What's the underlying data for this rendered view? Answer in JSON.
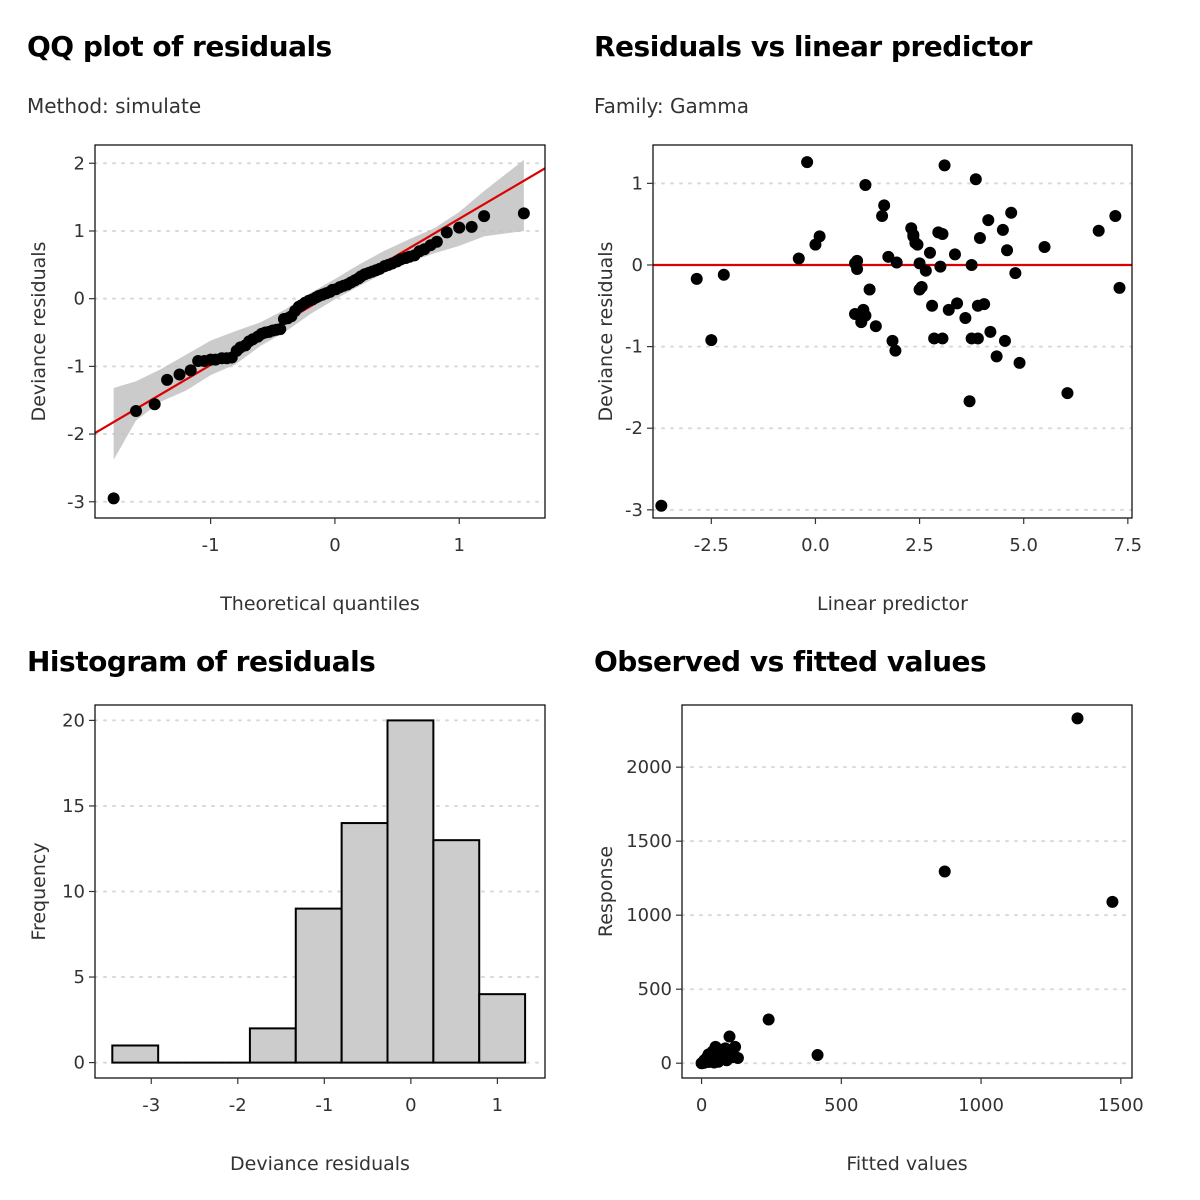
{
  "panels": {
    "qq": {
      "title": "QQ plot of residuals",
      "subtitle": "Method: simulate"
    },
    "rvl": {
      "title": "Residuals vs linear predictor",
      "subtitle": "Family: Gamma"
    },
    "hist": {
      "title": "Histogram of residuals"
    },
    "ovf": {
      "title": "Observed vs fitted values"
    }
  },
  "colors": {
    "reference_line": "#dd0000",
    "band": "#bebebe",
    "bar_fill": "#cccccc",
    "point": "#000000",
    "grid": "#d9d9d9"
  },
  "chart_data": [
    {
      "id": "qq",
      "type": "scatter",
      "title": "QQ plot of residuals",
      "subtitle": "Method: simulate",
      "xlabel": "Theoretical quantiles",
      "ylabel": "Deviance residuals",
      "xlim": [
        -1.93,
        1.69
      ],
      "ylim": [
        -3.24,
        2.27
      ],
      "xticks": [
        -1,
        0,
        1
      ],
      "xtick_labels": [
        "-1",
        "0",
        "1"
      ],
      "yticks": [
        -3,
        -2,
        -1,
        0,
        1,
        2
      ],
      "ytick_labels": [
        "-3",
        "-2",
        "-1",
        "0",
        "1",
        "2"
      ],
      "grid": "horizontal dotted",
      "reference_line": {
        "intercept": 0.1,
        "slope": 1.08
      },
      "band": {
        "x": [
          -1.78,
          -1.6,
          -1.4,
          -1.2,
          -1.0,
          -0.8,
          -0.6,
          -0.4,
          -0.2,
          0.0,
          0.2,
          0.4,
          0.6,
          0.8,
          1.0,
          1.2,
          1.52
        ],
        "lower": [
          -2.38,
          -1.8,
          -1.52,
          -1.36,
          -1.13,
          -0.97,
          -0.7,
          -0.49,
          -0.23,
          -0.01,
          0.19,
          0.38,
          0.54,
          0.67,
          0.78,
          0.92,
          1.0
        ],
        "upper": [
          -1.32,
          -1.22,
          -1.04,
          -0.83,
          -0.62,
          -0.48,
          -0.35,
          -0.16,
          0.08,
          0.29,
          0.51,
          0.71,
          0.88,
          1.04,
          1.28,
          1.59,
          2.05
        ]
      },
      "x": [
        -1.78,
        -1.6,
        -1.45,
        -1.35,
        -1.25,
        -1.16,
        -1.1,
        -1.05,
        -1.0,
        -0.96,
        -0.91,
        -0.87,
        -0.83,
        -0.79,
        -0.76,
        -0.72,
        -0.69,
        -0.66,
        -0.62,
        -0.59,
        -0.56,
        -0.53,
        -0.5,
        -0.47,
        -0.44,
        -0.41,
        -0.38,
        -0.35,
        -0.32,
        -0.29,
        -0.27,
        -0.24,
        -0.21,
        -0.18,
        -0.15,
        -0.13,
        -0.1,
        -0.07,
        -0.04,
        -0.02,
        0.01,
        0.04,
        0.07,
        0.1,
        0.13,
        0.16,
        0.19,
        0.21,
        0.24,
        0.27,
        0.3,
        0.33,
        0.36,
        0.4,
        0.43,
        0.46,
        0.5,
        0.53,
        0.57,
        0.6,
        0.64,
        0.68,
        0.72,
        0.77,
        0.82,
        0.9,
        1.0,
        1.1,
        1.2,
        1.52
      ],
      "y": [
        -2.95,
        -1.66,
        -1.56,
        -1.2,
        -1.12,
        -1.06,
        -0.92,
        -0.92,
        -0.9,
        -0.9,
        -0.88,
        -0.88,
        -0.87,
        -0.77,
        -0.72,
        -0.69,
        -0.63,
        -0.6,
        -0.56,
        -0.52,
        -0.5,
        -0.49,
        -0.47,
        -0.46,
        -0.45,
        -0.3,
        -0.29,
        -0.26,
        -0.18,
        -0.12,
        -0.1,
        -0.06,
        -0.03,
        -0.01,
        0.02,
        0.04,
        0.06,
        0.08,
        0.1,
        0.13,
        0.14,
        0.17,
        0.19,
        0.21,
        0.24,
        0.27,
        0.3,
        0.33,
        0.36,
        0.38,
        0.4,
        0.42,
        0.44,
        0.48,
        0.5,
        0.52,
        0.55,
        0.58,
        0.6,
        0.62,
        0.64,
        0.7,
        0.73,
        0.79,
        0.84,
        0.98,
        1.05,
        1.06,
        1.22,
        1.26
      ]
    },
    {
      "id": "rvl",
      "type": "scatter",
      "title": "Residuals vs linear predictor",
      "subtitle": "Family: Gamma",
      "xlabel": "Linear predictor",
      "ylabel": "Deviance residuals",
      "xlim": [
        -3.9,
        7.6
      ],
      "ylim": [
        -3.1,
        1.47
      ],
      "xticks": [
        -2.5,
        0,
        2.5,
        5,
        7.5
      ],
      "xtick_labels": [
        "-2.5",
        "0.0",
        "2.5",
        "5.0",
        "7.5"
      ],
      "yticks": [
        -3,
        -2,
        -1,
        0,
        1
      ],
      "ytick_labels": [
        "-3",
        "-2",
        "-1",
        "0",
        "1"
      ],
      "grid": "horizontal dotted",
      "hline": 0,
      "x": [
        -3.7,
        -2.85,
        -2.5,
        -2.2,
        -0.4,
        -0.2,
        0.0,
        0.1,
        0.95,
        1.0,
        1.15,
        1.2,
        1.3,
        1.45,
        1.6,
        1.65,
        1.75,
        1.85,
        1.92,
        1.95,
        2.3,
        2.35,
        2.4,
        2.45,
        2.5,
        2.55,
        2.65,
        2.75,
        2.8,
        2.85,
        2.95,
        3.0,
        3.05,
        3.1,
        3.2,
        3.35,
        3.4,
        3.6,
        3.75,
        3.85,
        3.9,
        3.95,
        4.05,
        4.15,
        4.2,
        4.35,
        4.5,
        4.55,
        4.6,
        4.7,
        4.8,
        4.9,
        5.5,
        6.05,
        6.8,
        7.2,
        7.3,
        1.0,
        1.1,
        0.95,
        2.35,
        3.7,
        3.75,
        3.9,
        2.5,
        3.05,
        1.2
      ],
      "y": [
        -2.95,
        -0.17,
        -0.92,
        -0.12,
        0.08,
        1.26,
        0.25,
        0.35,
        -0.6,
        0.05,
        -0.55,
        0.98,
        -0.3,
        -0.75,
        0.6,
        0.73,
        0.1,
        -0.93,
        -1.05,
        0.03,
        0.45,
        0.35,
        0.27,
        0.25,
        -0.3,
        -0.27,
        -0.07,
        0.15,
        -0.5,
        -0.9,
        0.4,
        -0.02,
        -0.9,
        1.22,
        -0.55,
        0.13,
        -0.47,
        -0.65,
        0.0,
        1.05,
        -0.5,
        0.33,
        -0.48,
        0.55,
        -0.82,
        -1.12,
        0.43,
        -0.93,
        0.18,
        0.64,
        -0.1,
        -1.2,
        0.22,
        -1.57,
        0.42,
        0.6,
        -0.28,
        -0.05,
        -0.7,
        0.02,
        0.37,
        -1.67,
        -0.9,
        -0.9,
        0.02,
        0.38,
        -0.62
      ]
    },
    {
      "id": "hist",
      "type": "bar",
      "title": "Histogram of residuals",
      "xlabel": "Deviance residuals",
      "ylabel": "Frequency",
      "xlim": [
        -3.65,
        1.55
      ],
      "ylim": [
        -0.9,
        20.9
      ],
      "xticks": [
        -3,
        -2,
        -1,
        0,
        1
      ],
      "xtick_labels": [
        "-3",
        "-2",
        "-1",
        "0",
        "1"
      ],
      "yticks": [
        0,
        5,
        10,
        15,
        20
      ],
      "ytick_labels": [
        "0",
        "5",
        "10",
        "15",
        "20"
      ],
      "grid": "horizontal dotted",
      "bin_edges": [
        -3.45,
        -2.92,
        -2.39,
        -1.86,
        -1.33,
        -0.8,
        -0.27,
        0.26,
        0.79,
        1.32
      ],
      "values": [
        1,
        0,
        0,
        2,
        9,
        14,
        20,
        13,
        4
      ]
    },
    {
      "id": "ovf",
      "type": "scatter",
      "title": "Observed vs fitted values",
      "xlabel": "Fitted values",
      "ylabel": "Response",
      "xlim": [
        -70,
        1540
      ],
      "ylim": [
        -100,
        2420
      ],
      "xticks": [
        0,
        500,
        1000,
        1500
      ],
      "xtick_labels": [
        "0",
        "500",
        "1000",
        "1500"
      ],
      "yticks": [
        0,
        500,
        1000,
        1500,
        2000
      ],
      "ytick_labels": [
        "0",
        "500",
        "1000",
        "1500",
        "2000"
      ],
      "grid": "horizontal dotted",
      "x": [
        0,
        5,
        10,
        15,
        20,
        25,
        30,
        35,
        40,
        45,
        50,
        55,
        60,
        65,
        70,
        75,
        80,
        85,
        90,
        95,
        100,
        110,
        120,
        130,
        45,
        60,
        30,
        15,
        70,
        100,
        240,
        415,
        870,
        1345,
        1470,
        8,
        25
      ],
      "y": [
        0,
        5,
        20,
        10,
        40,
        60,
        15,
        30,
        80,
        20,
        110,
        45,
        10,
        70,
        90,
        30,
        50,
        100,
        20,
        60,
        180,
        40,
        110,
        35,
        5,
        25,
        50,
        15,
        65,
        75,
        295,
        55,
        1295,
        2330,
        1090,
        2,
        8
      ]
    }
  ]
}
